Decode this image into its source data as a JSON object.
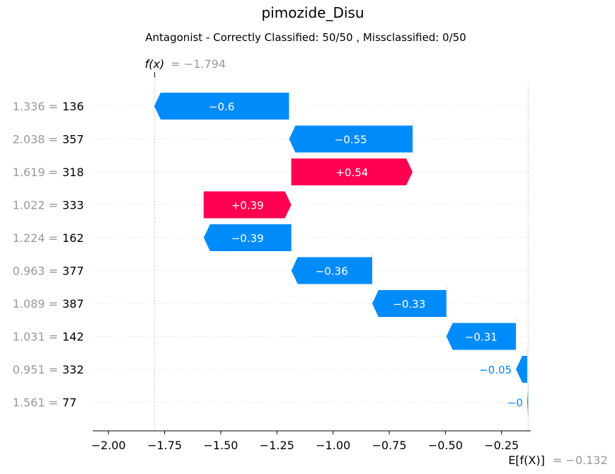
{
  "chart_data": {
    "type": "waterfall",
    "title": "pimozide_Disu",
    "subtitle": "Antagonist - Correctly Classified: 50/50 , Missclassified: 0/50",
    "fx_label": "f(x)",
    "fx_value": -1.794,
    "fx_value_text": "= −1.794",
    "efx_label": "E[f(X)]",
    "efx_value": -0.132,
    "efx_value_text": "= −0.132",
    "xlim": [
      -2.07,
      -0.12
    ],
    "xticks": [
      -2.0,
      -1.75,
      -1.5,
      -1.25,
      -1.0,
      -0.75,
      -0.5,
      -0.25
    ],
    "xtick_labels": [
      "−2.00",
      "−1.75",
      "−1.50",
      "−1.25",
      "−1.00",
      "−0.75",
      "−0.50",
      "−0.25"
    ],
    "colors": {
      "positive": "#ff0051",
      "negative": "#008bfb"
    },
    "features": [
      {
        "value_text": "1.336 =",
        "name": "136",
        "contribution": -0.6,
        "label": "−0.6"
      },
      {
        "value_text": "2.038 =",
        "name": "357",
        "contribution": -0.55,
        "label": "−0.55"
      },
      {
        "value_text": "1.619 =",
        "name": "318",
        "contribution": 0.54,
        "label": "+0.54"
      },
      {
        "value_text": "1.022 =",
        "name": "333",
        "contribution": 0.39,
        "label": "+0.39"
      },
      {
        "value_text": "1.224 =",
        "name": "162",
        "contribution": -0.39,
        "label": "−0.39"
      },
      {
        "value_text": "0.963 =",
        "name": "377",
        "contribution": -0.36,
        "label": "−0.36"
      },
      {
        "value_text": "1.089 =",
        "name": "387",
        "contribution": -0.33,
        "label": "−0.33"
      },
      {
        "value_text": "1.031 =",
        "name": "142",
        "contribution": -0.31,
        "label": "−0.31"
      },
      {
        "value_text": "0.951 =",
        "name": "332",
        "contribution": -0.05,
        "label": "−0.05"
      },
      {
        "value_text": "1.561 =",
        "name": "77",
        "contribution": -0.004,
        "label": "−0"
      }
    ]
  }
}
